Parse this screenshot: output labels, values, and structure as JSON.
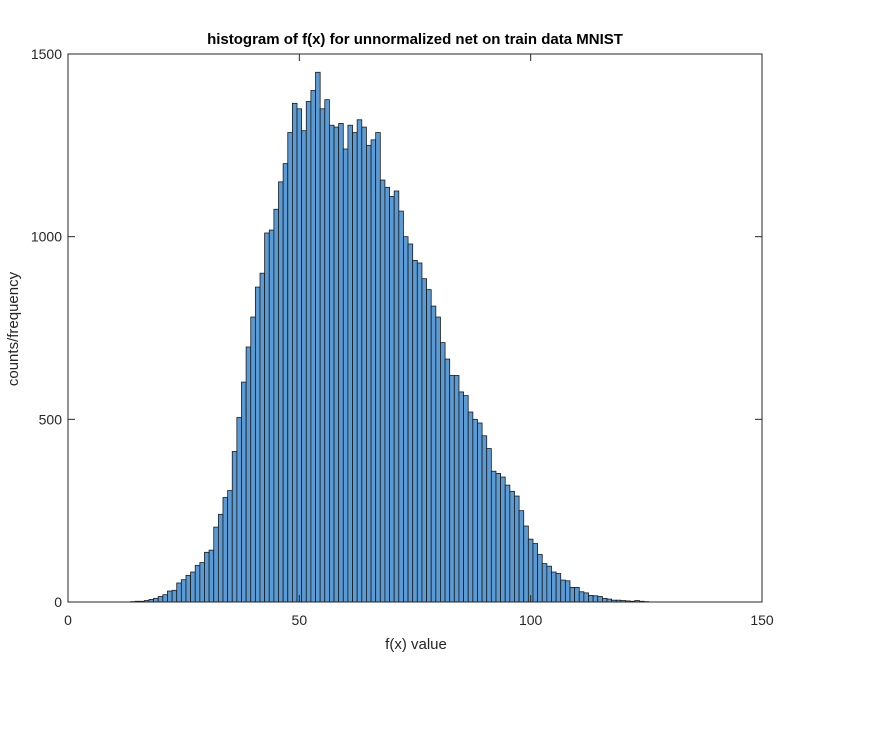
{
  "chart_data": {
    "type": "bar",
    "title": "histogram of f(x) for unnormalized net on train data MNIST",
    "xlabel": "f(x) value",
    "ylabel": "counts/frequency",
    "xlim": [
      0,
      150
    ],
    "ylim": [
      0,
      1500
    ],
    "xticks": [
      0,
      50,
      100,
      150
    ],
    "yticks": [
      0,
      500,
      1000,
      1500
    ],
    "grid": false,
    "bar_fill": "#5b9bd5",
    "bar_edge": "#1a1a1a",
    "bin_width": 1,
    "bins": [
      {
        "x": 14,
        "count": 1
      },
      {
        "x": 15,
        "count": 2
      },
      {
        "x": 16,
        "count": 2
      },
      {
        "x": 17,
        "count": 4
      },
      {
        "x": 18,
        "count": 7
      },
      {
        "x": 19,
        "count": 10
      },
      {
        "x": 20,
        "count": 15
      },
      {
        "x": 21,
        "count": 20
      },
      {
        "x": 22,
        "count": 30
      },
      {
        "x": 23,
        "count": 32
      },
      {
        "x": 24,
        "count": 52
      },
      {
        "x": 25,
        "count": 61
      },
      {
        "x": 26,
        "count": 73
      },
      {
        "x": 27,
        "count": 82
      },
      {
        "x": 28,
        "count": 100
      },
      {
        "x": 29,
        "count": 108
      },
      {
        "x": 30,
        "count": 136
      },
      {
        "x": 31,
        "count": 142
      },
      {
        "x": 32,
        "count": 205
      },
      {
        "x": 33,
        "count": 240
      },
      {
        "x": 34,
        "count": 286
      },
      {
        "x": 35,
        "count": 305
      },
      {
        "x": 36,
        "count": 412
      },
      {
        "x": 37,
        "count": 505
      },
      {
        "x": 38,
        "count": 602
      },
      {
        "x": 39,
        "count": 698
      },
      {
        "x": 40,
        "count": 780
      },
      {
        "x": 41,
        "count": 862
      },
      {
        "x": 42,
        "count": 900
      },
      {
        "x": 43,
        "count": 1010
      },
      {
        "x": 44,
        "count": 1018
      },
      {
        "x": 45,
        "count": 1075
      },
      {
        "x": 46,
        "count": 1150
      },
      {
        "x": 47,
        "count": 1200
      },
      {
        "x": 48,
        "count": 1285
      },
      {
        "x": 49,
        "count": 1365
      },
      {
        "x": 50,
        "count": 1350
      },
      {
        "x": 51,
        "count": 1290
      },
      {
        "x": 52,
        "count": 1370
      },
      {
        "x": 53,
        "count": 1400
      },
      {
        "x": 54,
        "count": 1450
      },
      {
        "x": 55,
        "count": 1350
      },
      {
        "x": 56,
        "count": 1375
      },
      {
        "x": 57,
        "count": 1305
      },
      {
        "x": 58,
        "count": 1300
      },
      {
        "x": 59,
        "count": 1310
      },
      {
        "x": 60,
        "count": 1240
      },
      {
        "x": 61,
        "count": 1305
      },
      {
        "x": 62,
        "count": 1285
      },
      {
        "x": 63,
        "count": 1320
      },
      {
        "x": 64,
        "count": 1300
      },
      {
        "x": 65,
        "count": 1250
      },
      {
        "x": 66,
        "count": 1265
      },
      {
        "x": 67,
        "count": 1285
      },
      {
        "x": 68,
        "count": 1155
      },
      {
        "x": 69,
        "count": 1135
      },
      {
        "x": 70,
        "count": 1110
      },
      {
        "x": 71,
        "count": 1125
      },
      {
        "x": 72,
        "count": 1070
      },
      {
        "x": 73,
        "count": 1000
      },
      {
        "x": 74,
        "count": 980
      },
      {
        "x": 75,
        "count": 935
      },
      {
        "x": 76,
        "count": 928
      },
      {
        "x": 77,
        "count": 885
      },
      {
        "x": 78,
        "count": 855
      },
      {
        "x": 79,
        "count": 810
      },
      {
        "x": 80,
        "count": 780
      },
      {
        "x": 81,
        "count": 710
      },
      {
        "x": 82,
        "count": 665
      },
      {
        "x": 83,
        "count": 620
      },
      {
        "x": 84,
        "count": 620
      },
      {
        "x": 85,
        "count": 575
      },
      {
        "x": 86,
        "count": 565
      },
      {
        "x": 87,
        "count": 520
      },
      {
        "x": 88,
        "count": 500
      },
      {
        "x": 89,
        "count": 490
      },
      {
        "x": 90,
        "count": 455
      },
      {
        "x": 91,
        "count": 420
      },
      {
        "x": 92,
        "count": 358
      },
      {
        "x": 93,
        "count": 352
      },
      {
        "x": 94,
        "count": 342
      },
      {
        "x": 95,
        "count": 320
      },
      {
        "x": 96,
        "count": 303
      },
      {
        "x": 97,
        "count": 290
      },
      {
        "x": 98,
        "count": 250
      },
      {
        "x": 99,
        "count": 208
      },
      {
        "x": 100,
        "count": 172
      },
      {
        "x": 101,
        "count": 160
      },
      {
        "x": 102,
        "count": 130
      },
      {
        "x": 103,
        "count": 105
      },
      {
        "x": 104,
        "count": 98
      },
      {
        "x": 105,
        "count": 82
      },
      {
        "x": 106,
        "count": 78
      },
      {
        "x": 107,
        "count": 60
      },
      {
        "x": 108,
        "count": 58
      },
      {
        "x": 109,
        "count": 40
      },
      {
        "x": 110,
        "count": 40
      },
      {
        "x": 111,
        "count": 28
      },
      {
        "x": 112,
        "count": 25
      },
      {
        "x": 113,
        "count": 18
      },
      {
        "x": 114,
        "count": 17
      },
      {
        "x": 115,
        "count": 15
      },
      {
        "x": 116,
        "count": 10
      },
      {
        "x": 117,
        "count": 8
      },
      {
        "x": 118,
        "count": 5
      },
      {
        "x": 119,
        "count": 5
      },
      {
        "x": 120,
        "count": 4
      },
      {
        "x": 121,
        "count": 3
      },
      {
        "x": 122,
        "count": 2
      },
      {
        "x": 123,
        "count": 4
      },
      {
        "x": 124,
        "count": 2
      },
      {
        "x": 125,
        "count": 1
      }
    ]
  }
}
